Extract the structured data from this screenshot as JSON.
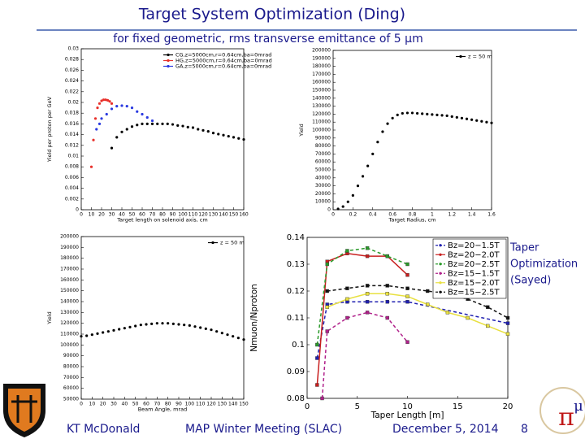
{
  "title": "Target System Optimization (Ding)",
  "subtitle": "for fixed geometric, rms transverse emittance of 5 μm",
  "side_note": [
    "Taper",
    "Optimization",
    "(Sayed)"
  ],
  "footer": {
    "author": "KT McDonald",
    "meeting": "MAP Winter Meeting (SLAC)",
    "date": "December 5, 2014",
    "page": "8"
  },
  "chart_data": [
    {
      "type": "scatter",
      "xlabel": "Target length on solenoid axis, cm",
      "ylabel": "Yield per proton per GeV",
      "legend": "upper right",
      "xlim": [
        0,
        160
      ],
      "xticks": [
        0,
        10,
        20,
        30,
        40,
        50,
        60,
        70,
        80,
        90,
        100,
        110,
        120,
        130,
        140,
        150,
        160
      ],
      "ylim": [
        0,
        0.03
      ],
      "yticks": [
        0,
        0.002,
        0.004,
        0.006,
        0.008,
        0.01,
        0.012,
        0.014,
        0.016,
        0.018,
        0.02,
        0.022,
        0.024,
        0.026,
        0.028,
        0.03
      ],
      "series": [
        {
          "name": "CG,z=5000cm,r=0.64cm,ba=0mrad",
          "color": "#000000",
          "x": [
            30,
            35,
            40,
            45,
            50,
            55,
            60,
            65,
            70,
            75,
            80,
            85,
            90,
            95,
            100,
            105,
            110,
            115,
            120,
            125,
            130,
            135,
            140,
            145,
            150,
            155,
            160
          ],
          "values": [
            0.0115,
            0.0135,
            0.0145,
            0.015,
            0.0155,
            0.0158,
            0.016,
            0.016,
            0.016,
            0.016,
            0.016,
            0.016,
            0.0159,
            0.0157,
            0.0156,
            0.0154,
            0.0153,
            0.015,
            0.0148,
            0.0146,
            0.0143,
            0.0141,
            0.0139,
            0.0137,
            0.0135,
            0.0133,
            0.0131
          ]
        },
        {
          "name": "HG,z=5000cm,r=0.64cm,ba=0mrad",
          "color": "#e8302a",
          "x": [
            10,
            12,
            14,
            16,
            18,
            20,
            22,
            24,
            26,
            28,
            30
          ],
          "values": [
            0.008,
            0.013,
            0.017,
            0.019,
            0.0198,
            0.0203,
            0.0205,
            0.0205,
            0.0204,
            0.0202,
            0.0198
          ]
        },
        {
          "name": "GA,z=5000cm,r=0.64cm,ba=0mrad",
          "color": "#2a3ae0",
          "x": [
            15,
            18,
            20,
            25,
            30,
            35,
            40,
            45,
            50,
            55,
            60,
            65,
            70
          ],
          "values": [
            0.015,
            0.016,
            0.017,
            0.0178,
            0.0188,
            0.0193,
            0.0194,
            0.0193,
            0.019,
            0.0183,
            0.0178,
            0.0172,
            0.0166
          ]
        }
      ]
    },
    {
      "type": "scatter",
      "xlabel": "Target Radius, cm",
      "ylabel": "Yield",
      "legend": "upper right",
      "xlim": [
        0,
        1.6
      ],
      "xticks": [
        0,
        0.2,
        0.4,
        0.6,
        0.8,
        1,
        1.2,
        1.4,
        1.6
      ],
      "ylim": [
        0,
        200000
      ],
      "yticks": [
        0,
        10000,
        20000,
        30000,
        40000,
        50000,
        60000,
        70000,
        80000,
        90000,
        100000,
        110000,
        120000,
        130000,
        140000,
        150000,
        160000,
        170000,
        180000,
        190000,
        200000
      ],
      "series": [
        {
          "name": "z = 50 m",
          "color": "#000000",
          "x": [
            0.05,
            0.1,
            0.15,
            0.2,
            0.25,
            0.3,
            0.35,
            0.4,
            0.45,
            0.5,
            0.55,
            0.6,
            0.65,
            0.7,
            0.75,
            0.8,
            0.85,
            0.9,
            0.95,
            1,
            1.05,
            1.1,
            1.15,
            1.2,
            1.25,
            1.3,
            1.35,
            1.4,
            1.45,
            1.5,
            1.55,
            1.6
          ],
          "values": [
            1000,
            4000,
            10000,
            18000,
            30000,
            42000,
            55000,
            70000,
            85000,
            98000,
            108000,
            115000,
            119000,
            121000,
            121500,
            121500,
            121000,
            120500,
            120000,
            119500,
            119000,
            118500,
            118000,
            117000,
            116000,
            115000,
            114000,
            113000,
            112000,
            111000,
            110000,
            109000
          ]
        }
      ]
    },
    {
      "type": "scatter",
      "xlabel": "Beam Angle, mrad",
      "ylabel": "Yield",
      "legend": "upper right",
      "xlim": [
        0,
        150
      ],
      "xticks": [
        0,
        10,
        20,
        30,
        40,
        50,
        60,
        70,
        80,
        90,
        100,
        110,
        120,
        130,
        140,
        150
      ],
      "ylim": [
        50000,
        200000
      ],
      "yticks": [
        50000,
        60000,
        70000,
        80000,
        90000,
        100000,
        110000,
        120000,
        130000,
        140000,
        150000,
        160000,
        170000,
        180000,
        190000,
        200000
      ],
      "series": [
        {
          "name": "z = 50 m",
          "color": "#000000",
          "x": [
            0,
            5,
            10,
            15,
            20,
            25,
            30,
            35,
            40,
            45,
            50,
            55,
            60,
            65,
            70,
            75,
            80,
            85,
            90,
            95,
            100,
            105,
            110,
            115,
            120,
            125,
            130,
            135,
            140,
            145,
            150
          ],
          "values": [
            108000,
            108500,
            109500,
            110500,
            111500,
            112500,
            113500,
            114500,
            115500,
            116500,
            117500,
            118500,
            119000,
            119500,
            120000,
            120000,
            120000,
            119500,
            119000,
            118500,
            118000,
            117000,
            116000,
            115000,
            114000,
            112500,
            111000,
            109500,
            108000,
            106500,
            105000
          ]
        }
      ]
    },
    {
      "type": "line",
      "xlabel": "Taper Length [m]",
      "ylabel": "Nmuon/Nproton",
      "legend": "upper right",
      "xlim": [
        0,
        20
      ],
      "xticks": [
        0,
        5,
        10,
        15,
        20
      ],
      "ylim": [
        0.08,
        0.14
      ],
      "yticks": [
        0.08,
        0.09,
        0.1,
        0.11,
        0.12,
        0.13,
        0.14
      ],
      "series": [
        {
          "name": "Bz=20−1.5T",
          "color": "#1f1fb0",
          "dashed": true,
          "x": [
            1,
            2,
            4,
            6,
            8,
            10,
            20
          ],
          "values": [
            0.095,
            0.115,
            0.116,
            0.116,
            0.116,
            0.116,
            0.108
          ]
        },
        {
          "name": "Bz=20−2.0T",
          "color": "#c81e1e",
          "dashed": false,
          "x": [
            1,
            2,
            4,
            6,
            8,
            10
          ],
          "values": [
            0.085,
            0.131,
            0.134,
            0.133,
            0.133,
            0.126
          ]
        },
        {
          "name": "Bz=20−2.5T",
          "color": "#2a9a2a",
          "dashed": true,
          "x": [
            1,
            2,
            4,
            6,
            8,
            10
          ],
          "values": [
            0.1,
            0.13,
            0.135,
            0.136,
            0.133,
            0.13
          ]
        },
        {
          "name": "Bz=15−1.5T",
          "color": "#b0208a",
          "dashed": true,
          "x": [
            1.5,
            2,
            4,
            6,
            8,
            10
          ],
          "values": [
            0.08,
            0.105,
            0.11,
            0.112,
            0.11,
            0.101
          ]
        },
        {
          "name": "Bz=15−2.0T",
          "color": "#e8e040",
          "dashed": false,
          "x": [
            2,
            4,
            6,
            8,
            10,
            12,
            14,
            16,
            18,
            20
          ],
          "values": [
            0.114,
            0.117,
            0.119,
            0.119,
            0.118,
            0.115,
            0.112,
            0.11,
            0.107,
            0.104
          ]
        },
        {
          "name": "Bz=15−2.5T",
          "color": "#111111",
          "dashed": true,
          "x": [
            2,
            4,
            6,
            8,
            10,
            12,
            14,
            16,
            18,
            20
          ],
          "values": [
            0.12,
            0.121,
            0.122,
            0.122,
            0.121,
            0.12,
            0.119,
            0.117,
            0.114,
            0.11
          ]
        }
      ]
    }
  ]
}
